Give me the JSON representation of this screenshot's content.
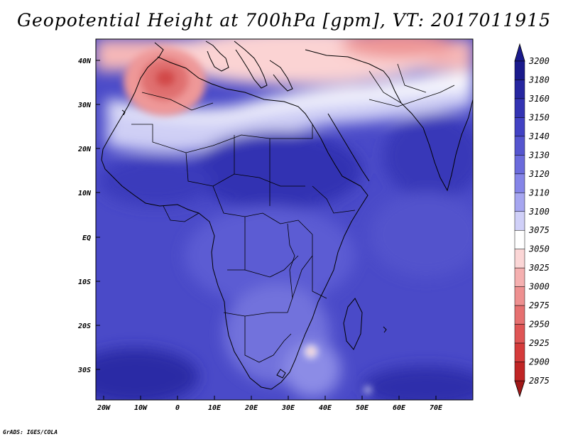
{
  "title": "Geopotential Height at 700hPa [gpm], VT: 2017011915",
  "credit": "GrADS: IGES/COLA",
  "map": {
    "lon_ticks": [
      "20W",
      "10W",
      "0",
      "10E",
      "20E",
      "30E",
      "40E",
      "50E",
      "60E",
      "70E"
    ],
    "lat_ticks": [
      "40N",
      "30N",
      "20N",
      "10N",
      "EQ",
      "10S",
      "20S",
      "30S"
    ]
  },
  "colorbar": {
    "levels": [
      "3200",
      "3180",
      "3160",
      "3150",
      "3140",
      "3130",
      "3120",
      "3110",
      "3100",
      "3075",
      "3050",
      "3025",
      "3000",
      "2975",
      "2950",
      "2925",
      "2900",
      "2875"
    ],
    "colors": [
      "#1a1a8c",
      "#2626a0",
      "#3333b3",
      "#4242c4",
      "#5555cf",
      "#6b6bdc",
      "#8585e8",
      "#a6a6f0",
      "#d0d0f8",
      "#ffffff",
      "#fbd6d6",
      "#f5b0b0",
      "#ee9090",
      "#e67070",
      "#df5555",
      "#d53b3b",
      "#c02525",
      "#a01818"
    ]
  }
}
